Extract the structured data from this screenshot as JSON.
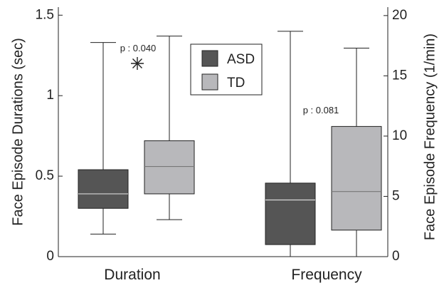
{
  "chart_data": {
    "type": "box",
    "categories": [
      "Duration",
      "Frequency"
    ],
    "y_left": {
      "label": "Face Episode Durations (sec)",
      "lim": [
        0,
        1.55
      ],
      "ticks": [
        {
          "value": 0,
          "label": "0"
        },
        {
          "value": 0.5,
          "label": "0.5"
        },
        {
          "value": 1,
          "label": "1"
        },
        {
          "value": 1.5,
          "label": "1.5"
        }
      ]
    },
    "y_right": {
      "label": "Face Episode Frequency (1/min)",
      "lim": [
        0,
        20.7
      ],
      "ticks": [
        {
          "value": 0,
          "label": "0"
        },
        {
          "value": 5,
          "label": "5"
        },
        {
          "value": 10,
          "label": "10"
        },
        {
          "value": 15,
          "label": "15"
        },
        {
          "value": 20,
          "label": "20"
        }
      ]
    },
    "series": [
      {
        "name": "ASD",
        "color": "#555555",
        "median_color": "#d8d8d8",
        "boxes": [
          {
            "category": "Duration",
            "axis": "left",
            "min": 0.14,
            "q1": 0.3,
            "median": 0.39,
            "q3": 0.54,
            "max": 1.33
          },
          {
            "category": "Frequency",
            "axis": "right",
            "min": 0.0,
            "q1": 1.0,
            "median": 4.7,
            "q3": 6.1,
            "max": 18.7
          }
        ]
      },
      {
        "name": "TD",
        "color": "#b8b8bb",
        "median_color": "#777777",
        "boxes": [
          {
            "category": "Duration",
            "axis": "left",
            "min": 0.23,
            "q1": 0.39,
            "median": 0.56,
            "q3": 0.72,
            "max": 1.37
          },
          {
            "category": "Frequency",
            "axis": "right",
            "min": 0.0,
            "q1": 2.2,
            "median": 5.4,
            "q3": 10.8,
            "max": 17.3
          }
        ]
      }
    ],
    "annotations": [
      {
        "text": "p : 0.040",
        "category": "Duration"
      },
      {
        "text": "p : 0.081",
        "category": "Frequency"
      }
    ],
    "significance_marker": {
      "symbol": "asterisk",
      "category": "Duration"
    },
    "legend": {
      "position": "top-center",
      "entries": [
        "ASD",
        "TD"
      ]
    },
    "grid": false
  }
}
